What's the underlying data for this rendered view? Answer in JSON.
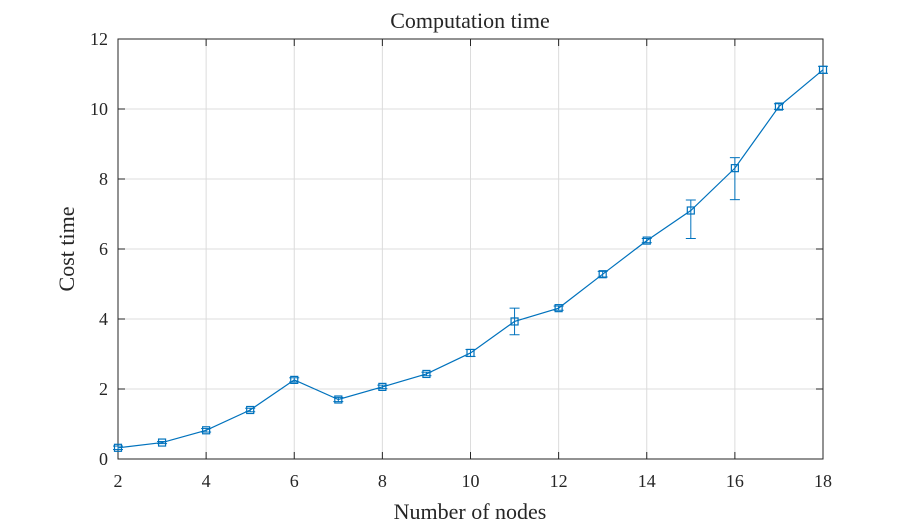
{
  "chart_data": {
    "type": "line",
    "title": "Computation time",
    "xlabel": "Number of nodes",
    "ylabel": "Cost time",
    "xlim": [
      2,
      18
    ],
    "ylim": [
      0,
      12
    ],
    "xticks": [
      2,
      4,
      6,
      8,
      10,
      12,
      14,
      16,
      18
    ],
    "yticks": [
      0,
      2,
      4,
      6,
      8,
      10,
      12
    ],
    "xtick_labels": [
      "2",
      "4",
      "6",
      "8",
      "10",
      "12",
      "14",
      "16",
      "18"
    ],
    "ytick_labels": [
      "0",
      "2",
      "4",
      "6",
      "8",
      "10",
      "12"
    ],
    "grid": true,
    "marker": "square",
    "color": "#0072BD",
    "series": [
      {
        "x": [
          2,
          3,
          4,
          5,
          6,
          7,
          8,
          9,
          10,
          11,
          12,
          13,
          14,
          15,
          16,
          17,
          18
        ],
        "values": [
          0.32,
          0.47,
          0.82,
          1.4,
          2.26,
          1.7,
          2.06,
          2.43,
          3.03,
          3.93,
          4.31,
          5.28,
          6.24,
          7.1,
          8.31,
          10.07,
          11.12
        ],
        "err_lower": [
          0.05,
          0.03,
          0.05,
          0.05,
          0.06,
          0.06,
          0.05,
          0.05,
          0.1,
          0.38,
          0.06,
          0.08,
          0.06,
          0.8,
          0.9,
          0.08,
          0.1
        ],
        "err_upper": [
          0.05,
          0.03,
          0.05,
          0.05,
          0.06,
          0.06,
          0.05,
          0.05,
          0.1,
          0.38,
          0.06,
          0.08,
          0.06,
          0.3,
          0.3,
          0.08,
          0.1
        ]
      }
    ]
  }
}
